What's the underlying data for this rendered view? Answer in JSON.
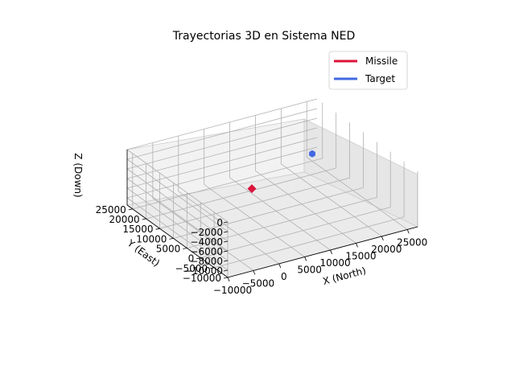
{
  "chart_data": {
    "type": "scatter",
    "projection": "3d",
    "title": "Trayectorias 3D en Sistema NED",
    "xlabel": "X (North)",
    "ylabel": "Y (East)",
    "zlabel": "Z (Down)",
    "xlim": [
      -10000,
      27000
    ],
    "ylim": [
      -10000,
      27000
    ],
    "zlim": [
      -11500,
      0
    ],
    "z_inverted": true,
    "x_ticks": [
      "−10000",
      "−5000",
      "0",
      "5000",
      "10000",
      "15000",
      "20000",
      "25000"
    ],
    "y_ticks": [
      "−10000",
      "−5000",
      "0",
      "5000",
      "10000",
      "15000",
      "20000",
      "25000"
    ],
    "z_ticks": [
      "0",
      "−2000",
      "−4000",
      "−6000",
      "−8000",
      "−10000"
    ],
    "grid": true,
    "legend_position": "top-right",
    "series": [
      {
        "name": "Missile",
        "color": "#dc143c",
        "marker": "diamond",
        "x": [
          0
        ],
        "y": [
          0
        ],
        "z": [
          0
        ]
      },
      {
        "name": "Target",
        "color": "#4169e1",
        "marker": "hexagon",
        "x": [
          25000
        ],
        "y": [
          25000
        ],
        "z": [
          -10000
        ]
      }
    ]
  }
}
